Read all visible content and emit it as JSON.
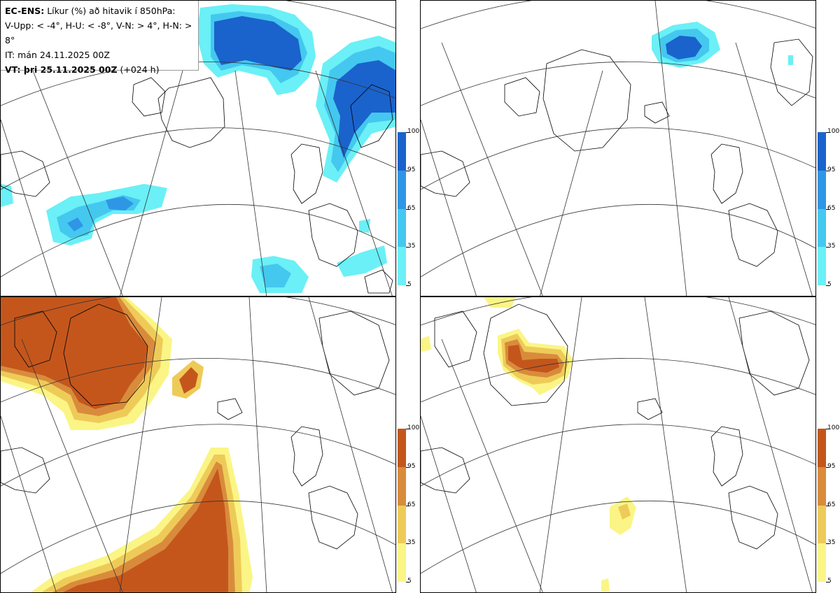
{
  "legend": {
    "line1_bold": "EC-ENS:",
    "line1_rest": "Líkur (%) að hitavik í 850hPa:",
    "line2": "V-Upp: < -4°, H-U: < -8°, V-N: > 4°, H-N: > 8°",
    "line3": "IT: mán 24.11.2025 00Z",
    "line4_bold": "VT: þri 25.11.2025 00Z",
    "line4_rest": "(+024 h)"
  },
  "colorbar_ticks": [
    "100",
    "95",
    "65",
    "35",
    "5"
  ],
  "colors": {
    "cold_5": "#6af0f6",
    "cold_35": "#44c8ef",
    "cold_65": "#2f96e6",
    "cold_95": "#1a63cc",
    "warm_5": "#fbf586",
    "warm_35": "#eecb58",
    "warm_65": "#d98b3c",
    "warm_95": "#c4561c"
  },
  "panels": [
    {
      "id": "V-Upp",
      "type": "cold"
    },
    {
      "id": "H-U",
      "type": "cold"
    },
    {
      "id": "V-N",
      "type": "warm"
    },
    {
      "id": "H-N",
      "type": "warm"
    }
  ]
}
